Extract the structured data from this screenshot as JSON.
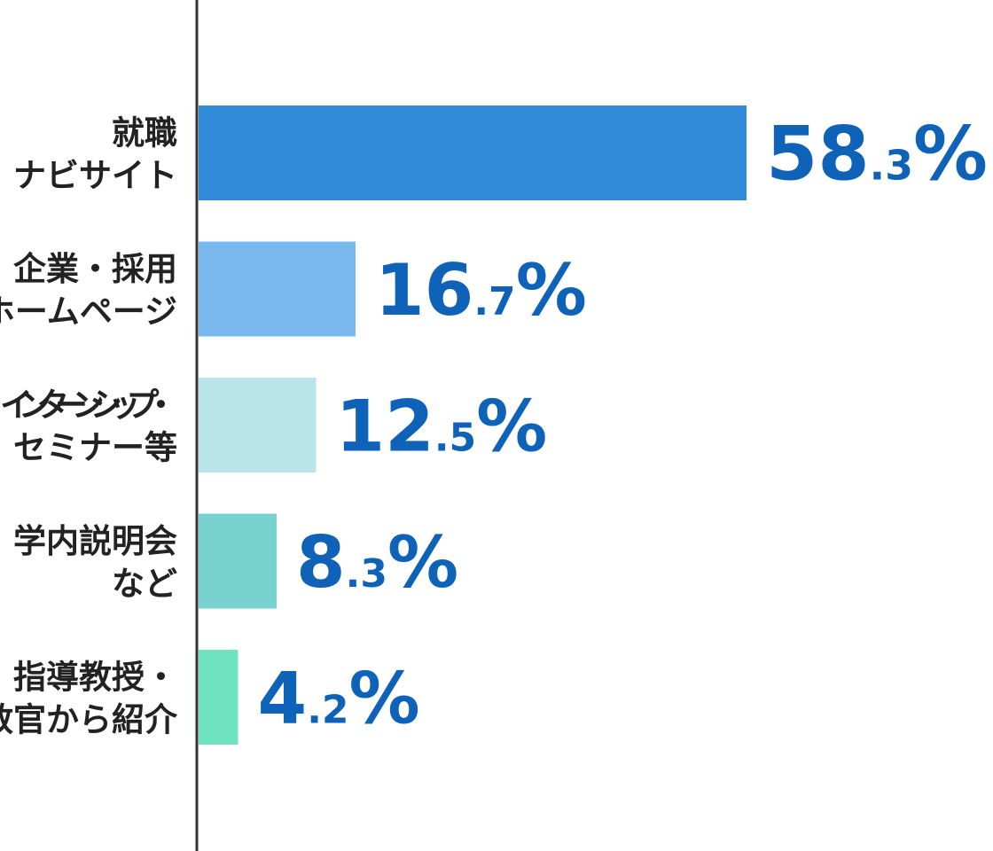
{
  "chart_data": {
    "type": "bar",
    "orientation": "horizontal",
    "categories": [
      [
        "就職",
        "ナビサイト"
      ],
      [
        "企業・採用",
        "ホームページ"
      ],
      [
        "インターンシップ・",
        "セミナー等"
      ],
      [
        "学内説明会",
        "など"
      ],
      [
        "指導教授・",
        "教官から紹介"
      ]
    ],
    "values": [
      58.3,
      16.7,
      12.5,
      8.3,
      4.2
    ],
    "value_labels": [
      "58.3%",
      "16.7%",
      "12.5%",
      "8.3%",
      "4.2%"
    ],
    "colors": [
      "#328bd9",
      "#78b8ec",
      "#b8e4ea",
      "#78d3d0",
      "#6fe3bd"
    ],
    "value_color": "#0e63b8",
    "axis_color": "#333333",
    "unit": "%",
    "xlim": [
      0,
      60
    ],
    "grid": false,
    "title": "",
    "xlabel": "",
    "ylabel": ""
  }
}
